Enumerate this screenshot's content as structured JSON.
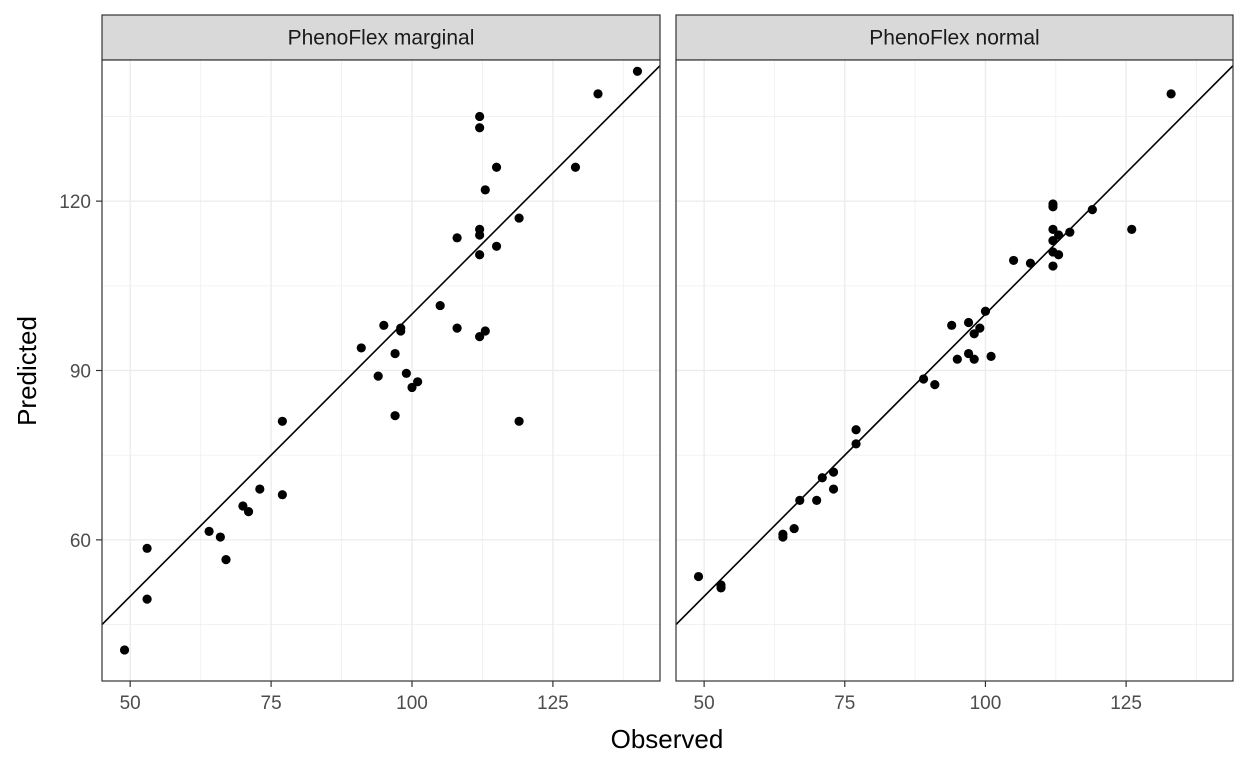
{
  "chart_data": {
    "type": "scatter",
    "xlabel": "Observed",
    "ylabel": "Predicted",
    "xlim": [
      45,
      144
    ],
    "ylim": [
      35,
      145
    ],
    "x_ticks": [
      50,
      75,
      100,
      125
    ],
    "y_ticks": [
      60,
      90,
      120
    ],
    "grid": true,
    "reference_line": "y = x",
    "point_color": "#000000",
    "panels": [
      {
        "title": "PhenoFlex marginal",
        "points": [
          {
            "x": 49,
            "y": 40.5
          },
          {
            "x": 53,
            "y": 49.5
          },
          {
            "x": 53,
            "y": 58.5
          },
          {
            "x": 64,
            "y": 61.5
          },
          {
            "x": 66,
            "y": 60.5
          },
          {
            "x": 67,
            "y": 56.5
          },
          {
            "x": 70,
            "y": 66
          },
          {
            "x": 71,
            "y": 65
          },
          {
            "x": 73,
            "y": 69
          },
          {
            "x": 77,
            "y": 81
          },
          {
            "x": 77,
            "y": 68
          },
          {
            "x": 91,
            "y": 94
          },
          {
            "x": 94,
            "y": 89
          },
          {
            "x": 95,
            "y": 98
          },
          {
            "x": 97,
            "y": 93
          },
          {
            "x": 97,
            "y": 82
          },
          {
            "x": 98,
            "y": 97.5
          },
          {
            "x": 98,
            "y": 97
          },
          {
            "x": 99,
            "y": 89.5
          },
          {
            "x": 100,
            "y": 87
          },
          {
            "x": 101,
            "y": 88
          },
          {
            "x": 105,
            "y": 101.5
          },
          {
            "x": 108,
            "y": 113.5
          },
          {
            "x": 108,
            "y": 97.5
          },
          {
            "x": 112,
            "y": 135
          },
          {
            "x": 112,
            "y": 133
          },
          {
            "x": 112,
            "y": 115
          },
          {
            "x": 112,
            "y": 114
          },
          {
            "x": 112,
            "y": 110.5
          },
          {
            "x": 112,
            "y": 96
          },
          {
            "x": 113,
            "y": 122
          },
          {
            "x": 113,
            "y": 97
          },
          {
            "x": 115,
            "y": 126
          },
          {
            "x": 115,
            "y": 112
          },
          {
            "x": 119,
            "y": 117
          },
          {
            "x": 119,
            "y": 81
          },
          {
            "x": 129,
            "y": 126
          },
          {
            "x": 133,
            "y": 139
          },
          {
            "x": 140,
            "y": 143
          }
        ]
      },
      {
        "title": "PhenoFlex normal",
        "points": [
          {
            "x": 49,
            "y": 53.5
          },
          {
            "x": 53,
            "y": 52
          },
          {
            "x": 53,
            "y": 51.5
          },
          {
            "x": 64,
            "y": 61
          },
          {
            "x": 64,
            "y": 60.5
          },
          {
            "x": 66,
            "y": 62
          },
          {
            "x": 67,
            "y": 67
          },
          {
            "x": 70,
            "y": 67
          },
          {
            "x": 71,
            "y": 71
          },
          {
            "x": 73,
            "y": 72
          },
          {
            "x": 73,
            "y": 69
          },
          {
            "x": 77,
            "y": 79.5
          },
          {
            "x": 77,
            "y": 77
          },
          {
            "x": 89,
            "y": 88.5
          },
          {
            "x": 91,
            "y": 87.5
          },
          {
            "x": 94,
            "y": 98
          },
          {
            "x": 95,
            "y": 92
          },
          {
            "x": 97,
            "y": 98.5
          },
          {
            "x": 97,
            "y": 93
          },
          {
            "x": 98,
            "y": 96.5
          },
          {
            "x": 98,
            "y": 92
          },
          {
            "x": 99,
            "y": 97.5
          },
          {
            "x": 100,
            "y": 100.5
          },
          {
            "x": 101,
            "y": 92.5
          },
          {
            "x": 105,
            "y": 109.5
          },
          {
            "x": 108,
            "y": 109
          },
          {
            "x": 112,
            "y": 119.5
          },
          {
            "x": 112,
            "y": 119
          },
          {
            "x": 112,
            "y": 115
          },
          {
            "x": 112,
            "y": 113
          },
          {
            "x": 112,
            "y": 111
          },
          {
            "x": 112,
            "y": 108.5
          },
          {
            "x": 113,
            "y": 114
          },
          {
            "x": 113,
            "y": 110.5
          },
          {
            "x": 115,
            "y": 114.5
          },
          {
            "x": 119,
            "y": 118.5
          },
          {
            "x": 126,
            "y": 115
          },
          {
            "x": 133,
            "y": 139
          }
        ]
      }
    ]
  }
}
